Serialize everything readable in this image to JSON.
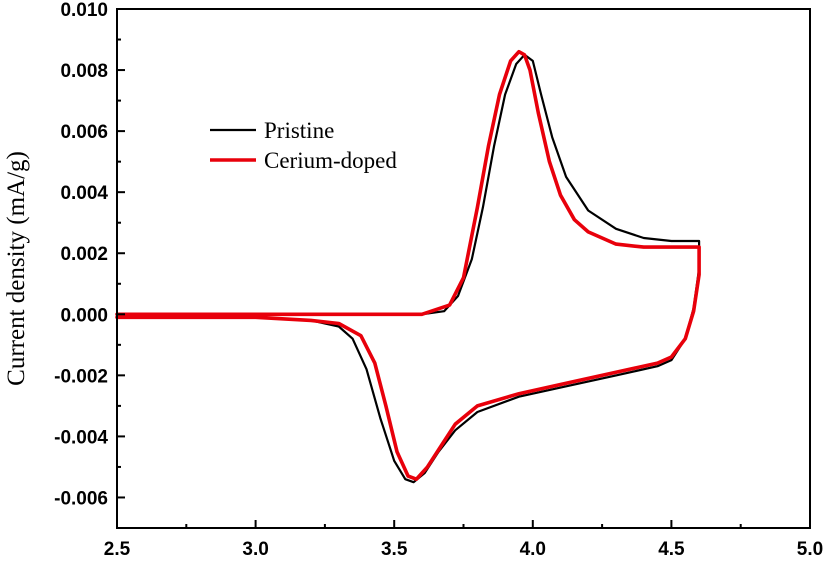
{
  "chart_data": {
    "type": "line",
    "title": "",
    "xlabel": "",
    "ylabel": "Current density (mA/g)",
    "xlim": [
      2.5,
      5.0
    ],
    "ylim": [
      -0.007,
      0.01
    ],
    "x_ticks": [
      "2.5",
      "3.0",
      "3.5",
      "4.0",
      "4.5",
      "5.0"
    ],
    "y_ticks": [
      "0.010",
      "0.008",
      "0.006",
      "0.004",
      "0.002",
      "0.000",
      "-0.002",
      "-0.004",
      "-0.006"
    ],
    "grid": false,
    "legend_position": "upper-left",
    "series": [
      {
        "name": "Pristine",
        "color": "#000000",
        "x": [
          2.5,
          3.0,
          3.4,
          3.6,
          3.68,
          3.73,
          3.78,
          3.82,
          3.86,
          3.9,
          3.94,
          3.97,
          4.0,
          4.03,
          4.07,
          4.12,
          4.2,
          4.3,
          4.4,
          4.5,
          4.6,
          4.6,
          4.58,
          4.55,
          4.5,
          4.45,
          4.3,
          4.1,
          3.95,
          3.8,
          3.72,
          3.66,
          3.61,
          3.57,
          3.54,
          3.5,
          3.45,
          3.4,
          3.35,
          3.3,
          3.2,
          3.0,
          2.8,
          2.5
        ],
        "y": [
          0.0,
          0.0,
          0.0,
          0.0,
          0.0001,
          0.0006,
          0.0018,
          0.0035,
          0.0055,
          0.0072,
          0.0082,
          0.0085,
          0.0083,
          0.0072,
          0.0058,
          0.0045,
          0.0034,
          0.0028,
          0.0025,
          0.0024,
          0.0024,
          0.0015,
          0.0002,
          -0.0008,
          -0.0015,
          -0.0017,
          -0.002,
          -0.0024,
          -0.0027,
          -0.0032,
          -0.0038,
          -0.0045,
          -0.0052,
          -0.0055,
          -0.0054,
          -0.0048,
          -0.0034,
          -0.0018,
          -0.0008,
          -0.0004,
          -0.0002,
          -0.0001,
          -0.0001,
          -0.0001
        ]
      },
      {
        "name": "Cerium-doped",
        "color": "#e8000b",
        "x": [
          2.5,
          3.0,
          3.4,
          3.6,
          3.7,
          3.75,
          3.8,
          3.84,
          3.88,
          3.92,
          3.95,
          3.97,
          3.99,
          4.02,
          4.06,
          4.1,
          4.15,
          4.2,
          4.3,
          4.4,
          4.5,
          4.6,
          4.6,
          4.58,
          4.55,
          4.5,
          4.45,
          4.3,
          4.1,
          3.95,
          3.8,
          3.72,
          3.67,
          3.62,
          3.58,
          3.55,
          3.51,
          3.47,
          3.43,
          3.38,
          3.3,
          3.2,
          3.0,
          2.8,
          2.5
        ],
        "y": [
          0.0,
          0.0,
          0.0,
          0.0,
          0.0003,
          0.0012,
          0.0035,
          0.0055,
          0.0072,
          0.0083,
          0.0086,
          0.0085,
          0.008,
          0.0066,
          0.005,
          0.0039,
          0.0031,
          0.0027,
          0.0023,
          0.0022,
          0.0022,
          0.0022,
          0.0013,
          0.0001,
          -0.0008,
          -0.0014,
          -0.0016,
          -0.0019,
          -0.0023,
          -0.0026,
          -0.003,
          -0.0036,
          -0.0043,
          -0.005,
          -0.0054,
          -0.0053,
          -0.0045,
          -0.003,
          -0.0016,
          -0.0007,
          -0.0003,
          -0.0002,
          -0.0001,
          -0.0001,
          -0.0001
        ]
      }
    ]
  }
}
